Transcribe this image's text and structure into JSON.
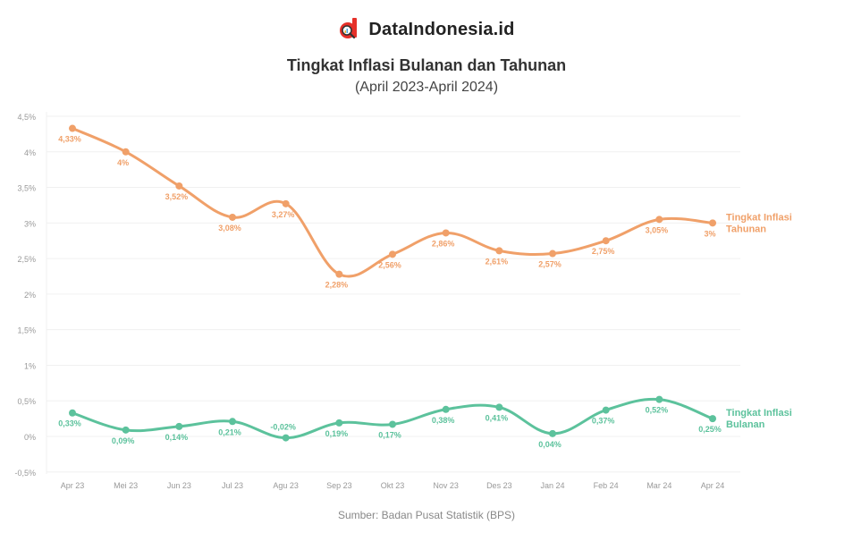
{
  "brand": {
    "name": "DataIndonesia.id",
    "logo_icon": "data-indonesia-logo-icon",
    "logo_color": "#e63029"
  },
  "header": {
    "title": "Tingkat Inflasi Bulanan dan Tahunan",
    "subtitle": "(April 2023-April 2024)"
  },
  "footer": {
    "source": "Sumber: Badan Pusat Statistik (BPS)"
  },
  "chart_data": {
    "type": "line",
    "title": "Tingkat Inflasi Bulanan dan Tahunan",
    "subtitle": "(April 2023-April 2024)",
    "xlabel": "",
    "ylabel": "",
    "ylim": [
      -0.5,
      4.5
    ],
    "yticks": [
      -0.5,
      0,
      0.5,
      1,
      1.5,
      2,
      2.5,
      3,
      3.5,
      4,
      4.5
    ],
    "ytick_labels": [
      "-0,5%",
      "0%",
      "0,5%",
      "1%",
      "1,5%",
      "2%",
      "2,5%",
      "3%",
      "3,5%",
      "4%",
      "4,5%"
    ],
    "grid": true,
    "legend_position": "end-of-line labels",
    "categories": [
      "Apr 23",
      "Mei 23",
      "Jun 23",
      "Jul 23",
      "Agu 23",
      "Sep 23",
      "Okt 23",
      "Nov 23",
      "Des 23",
      "Jan 24",
      "Feb 24",
      "Mar 24",
      "Apr 24"
    ],
    "series": [
      {
        "name": "Tingkat Inflasi Tahunan",
        "label_lines": [
          "Tingkat Inflasi",
          "Tahunan"
        ],
        "color": "#f0a069",
        "values": [
          4.33,
          4.0,
          3.52,
          3.08,
          3.27,
          2.28,
          2.56,
          2.86,
          2.61,
          2.57,
          2.75,
          3.05,
          3.0
        ],
        "labels": [
          "4,33%",
          "4%",
          "3,52%",
          "3,08%",
          "3,27%",
          "2,28%",
          "2,56%",
          "2,86%",
          "2,61%",
          "2,57%",
          "2,75%",
          "3,05%",
          "3%"
        ]
      },
      {
        "name": "Tingkat Inflasi Bulanan",
        "label_lines": [
          "Tingkat Inflasi",
          "Bulanan"
        ],
        "color": "#5cc29c",
        "values": [
          0.33,
          0.09,
          0.14,
          0.21,
          -0.02,
          0.19,
          0.17,
          0.38,
          0.41,
          0.04,
          0.37,
          0.52,
          0.25
        ],
        "labels": [
          "0,33%",
          "0,09%",
          "0,14%",
          "0,21%",
          "-0,02%",
          "0,19%",
          "0,17%",
          "0,38%",
          "0,41%",
          "0,04%",
          "0,37%",
          "0,52%",
          "0,25%"
        ]
      }
    ]
  }
}
